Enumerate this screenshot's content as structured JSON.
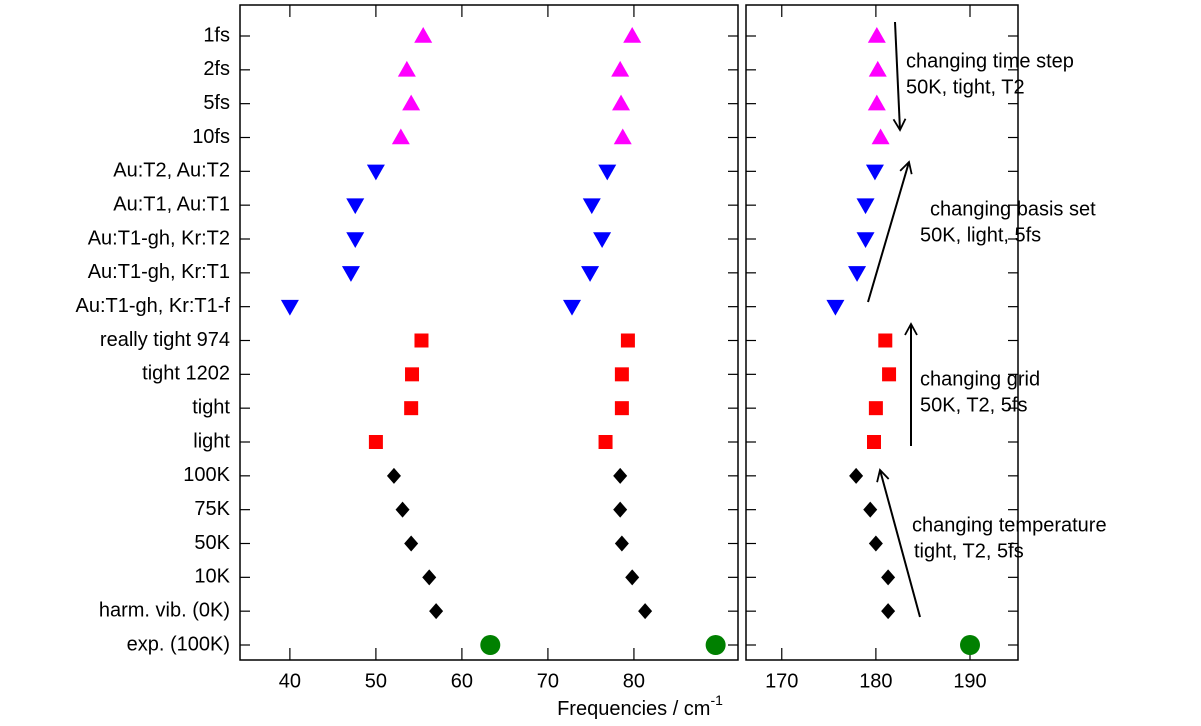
{
  "chart_data": [
    {
      "type": "scatter",
      "categories": [
        "1fs",
        "2fs",
        "5fs",
        "10fs",
        "Au:T2, Au:T2",
        "Au:T1, Au:T1",
        "Au:T1-gh, Kr:T2",
        "Au:T1-gh, Kr:T1",
        "Au:T1-gh, Kr:T1-f",
        "really tight 974",
        "tight 1202",
        "tight",
        "light",
        "100K",
        "75K",
        "50K",
        "10K",
        "harm. vib. (0K)",
        "exp. (100K)"
      ],
      "xlim": [
        34.2,
        92.1
      ],
      "xticks": [
        40,
        50,
        60,
        70,
        80
      ],
      "xlabel": "Frequencies / cm",
      "xlabel_sup": "-1",
      "series": [
        {
          "marker": "triangle-up",
          "color": "#ff00ff",
          "values": [
            55.5,
            53.6,
            54.1,
            52.9,
            null,
            null,
            null,
            null,
            null,
            null,
            null,
            null,
            null,
            null,
            null,
            null,
            null,
            null,
            null
          ]
        },
        {
          "marker": "triangle-up",
          "color": "#ff00ff",
          "values": [
            79.8,
            78.4,
            78.5,
            78.7,
            null,
            null,
            null,
            null,
            null,
            null,
            null,
            null,
            null,
            null,
            null,
            null,
            null,
            null,
            null
          ]
        },
        {
          "marker": "triangle-down",
          "color": "#0000ff",
          "values": [
            null,
            null,
            null,
            null,
            50.0,
            47.6,
            47.6,
            47.1,
            40.0,
            null,
            null,
            null,
            null,
            null,
            null,
            null,
            null,
            null,
            null
          ]
        },
        {
          "marker": "triangle-down",
          "color": "#0000ff",
          "values": [
            null,
            null,
            null,
            null,
            76.9,
            75.1,
            76.3,
            74.9,
            72.8,
            null,
            null,
            null,
            null,
            null,
            null,
            null,
            null,
            null,
            null
          ]
        },
        {
          "marker": "square",
          "color": "#ff0000",
          "values": [
            null,
            null,
            null,
            null,
            null,
            null,
            null,
            null,
            null,
            55.3,
            54.2,
            54.1,
            50.0,
            null,
            null,
            null,
            null,
            null,
            null
          ]
        },
        {
          "marker": "square",
          "color": "#ff0000",
          "values": [
            null,
            null,
            null,
            null,
            null,
            null,
            null,
            null,
            null,
            79.3,
            78.6,
            78.6,
            76.7,
            null,
            null,
            null,
            null,
            null,
            null
          ]
        },
        {
          "marker": "diamond",
          "color": "#000000",
          "values": [
            null,
            null,
            null,
            null,
            null,
            null,
            null,
            null,
            null,
            null,
            null,
            null,
            null,
            52.1,
            53.1,
            54.1,
            56.2,
            57.0,
            null
          ]
        },
        {
          "marker": "diamond",
          "color": "#000000",
          "values": [
            null,
            null,
            null,
            null,
            null,
            null,
            null,
            null,
            null,
            null,
            null,
            null,
            null,
            78.4,
            78.4,
            78.6,
            79.8,
            81.3,
            null
          ]
        },
        {
          "marker": "circle",
          "color": "#008000",
          "values": [
            null,
            null,
            null,
            null,
            null,
            null,
            null,
            null,
            null,
            null,
            null,
            null,
            null,
            null,
            null,
            null,
            null,
            null,
            63.3
          ]
        },
        {
          "marker": "circle",
          "color": "#008000",
          "values": [
            null,
            null,
            null,
            null,
            null,
            null,
            null,
            null,
            null,
            null,
            null,
            null,
            null,
            null,
            null,
            null,
            null,
            null,
            89.5
          ]
        }
      ]
    },
    {
      "type": "scatter",
      "xlim": [
        166.2,
        195.1
      ],
      "xticks": [
        170,
        180,
        190
      ],
      "series": [
        {
          "marker": "triangle-up",
          "color": "#ff00ff",
          "values": [
            180.1,
            180.2,
            180.1,
            180.5,
            null,
            null,
            null,
            null,
            null,
            null,
            null,
            null,
            null,
            null,
            null,
            null,
            null,
            null,
            null
          ]
        },
        {
          "marker": "triangle-down",
          "color": "#0000ff",
          "values": [
            null,
            null,
            null,
            null,
            179.9,
            178.9,
            178.9,
            178.0,
            175.7,
            null,
            null,
            null,
            null,
            null,
            null,
            null,
            null,
            null,
            null
          ]
        },
        {
          "marker": "square",
          "color": "#ff0000",
          "values": [
            null,
            null,
            null,
            null,
            null,
            null,
            null,
            null,
            null,
            181.0,
            181.4,
            180.0,
            179.8,
            null,
            null,
            null,
            null,
            null,
            null
          ]
        },
        {
          "marker": "diamond",
          "color": "#000000",
          "values": [
            null,
            null,
            null,
            null,
            null,
            null,
            null,
            null,
            null,
            null,
            null,
            null,
            null,
            177.9,
            179.4,
            180.0,
            181.3,
            181.3,
            null
          ]
        },
        {
          "marker": "circle",
          "color": "#008000",
          "values": [
            null,
            null,
            null,
            null,
            null,
            null,
            null,
            null,
            null,
            null,
            null,
            null,
            null,
            null,
            null,
            null,
            null,
            null,
            190.0
          ]
        }
      ],
      "annotations": [
        [
          "changing time step",
          "50K, tight, T2"
        ],
        [
          "changing basis set",
          "50K, light, 5fs"
        ],
        [
          "changing grid",
          "50K, T2, 5fs"
        ],
        [
          "changing temperature",
          "tight, T2, 5fs"
        ]
      ]
    }
  ]
}
